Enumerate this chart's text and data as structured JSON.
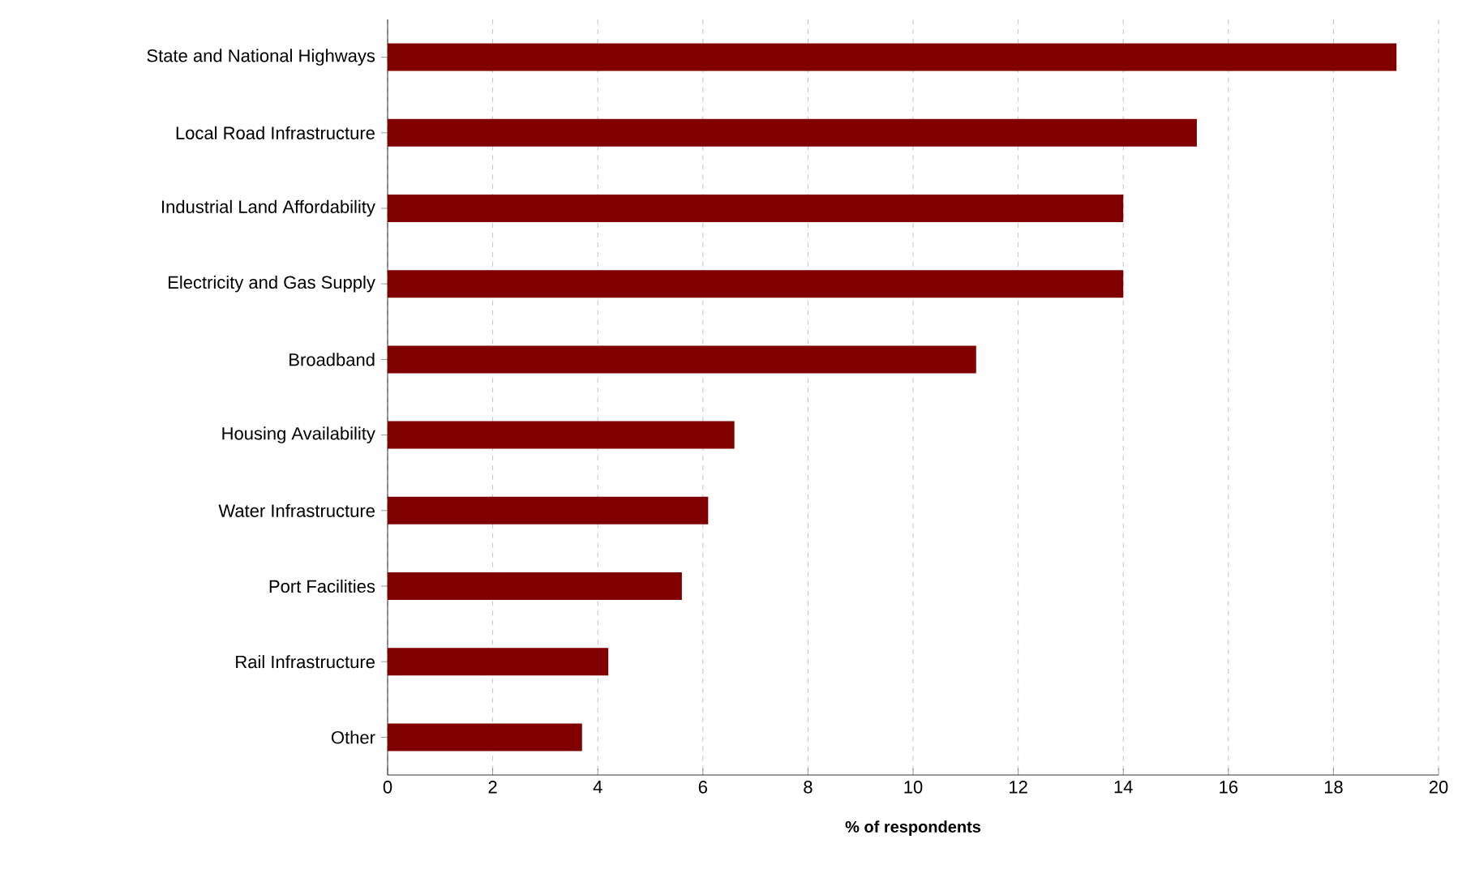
{
  "chart_data": {
    "type": "bar",
    "orientation": "horizontal",
    "categories": [
      "State and National Highways",
      "Local Road Infrastructure",
      "Industrial Land Affordability",
      "Electricity and Gas Supply",
      "Broadband",
      "Housing Availability",
      "Water Infrastructure",
      "Port Facilities",
      "Rail Infrastructure",
      "Other"
    ],
    "values": [
      19.2,
      15.4,
      14.0,
      14.0,
      11.2,
      6.6,
      6.1,
      5.6,
      4.2,
      3.7
    ],
    "color": "#800000",
    "xlim": [
      0,
      20
    ],
    "xticks": [
      0,
      2,
      4,
      6,
      8,
      10,
      12,
      14,
      16,
      18,
      20
    ],
    "xlabel": "% of respondents",
    "grid": "x"
  }
}
